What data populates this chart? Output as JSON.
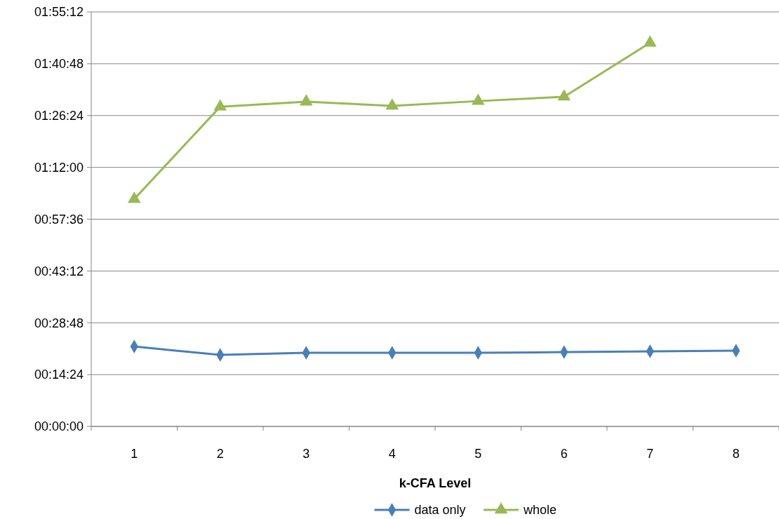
{
  "chart_data": {
    "type": "line",
    "xlabel": "k-CFA Level",
    "categories": [
      "1",
      "2",
      "3",
      "4",
      "5",
      "6",
      "7",
      "8"
    ],
    "ylim": [
      0,
      1.92
    ],
    "yticks": [
      {
        "value": 0,
        "label": "00:00:00"
      },
      {
        "value": 0.24,
        "label": "00:14:24"
      },
      {
        "value": 0.48,
        "label": "00:28:48"
      },
      {
        "value": 0.72,
        "label": "00:43:12"
      },
      {
        "value": 0.96,
        "label": "00:57:36"
      },
      {
        "value": 1.2,
        "label": "01:12:00"
      },
      {
        "value": 1.44,
        "label": "01:26:24"
      },
      {
        "value": 1.68,
        "label": "01:40:48"
      },
      {
        "value": 1.92,
        "label": "01:55:12"
      }
    ],
    "grid": "y",
    "legend": "bottom",
    "line_style": "solid",
    "series": [
      {
        "name": "data only",
        "color": "#4a7ebb",
        "marker": "diamond",
        "values": [
          0.37,
          0.331,
          0.341,
          0.341,
          0.341,
          0.344,
          0.348,
          0.351
        ]
      },
      {
        "name": "whole",
        "color": "#98b954",
        "marker": "triangle",
        "values": [
          1.053,
          1.481,
          1.504,
          1.485,
          1.507,
          1.527,
          1.777,
          null
        ]
      }
    ]
  }
}
